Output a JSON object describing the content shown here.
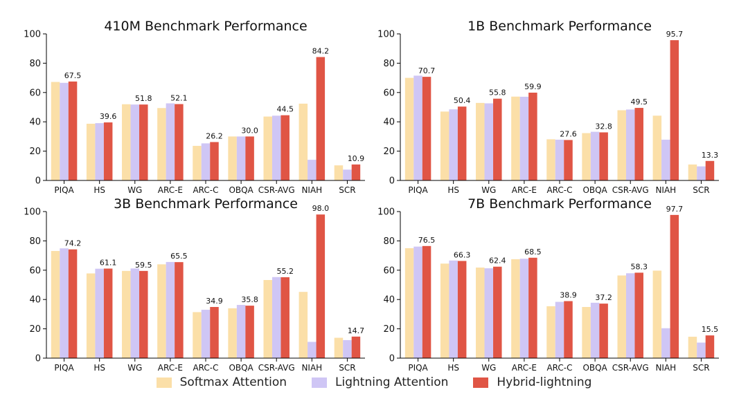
{
  "colors": {
    "softmax": "#FBDFA8",
    "lightning": "#CFC6F5",
    "hybrid": "#E05545",
    "axis": "#000000"
  },
  "legend": [
    {
      "label": "Softmax Attention",
      "color": "#FBDFA8"
    },
    {
      "label": "Lightning Attention",
      "color": "#CFC6F5"
    },
    {
      "label": "Hybrid-lightning",
      "color": "#E05545"
    }
  ],
  "chart_data": [
    {
      "type": "bar",
      "title": "410M Benchmark Performance",
      "categories": [
        "PIQA",
        "HS",
        "WG",
        "ARC-E",
        "ARC-C",
        "OBQA",
        "CSR-AVG",
        "NIAH",
        "SCR"
      ],
      "ylim": [
        0,
        100
      ],
      "yticks": [
        0,
        20,
        40,
        60,
        80,
        100
      ],
      "series": [
        {
          "name": "Softmax Attention",
          "values": [
            67.2,
            38.7,
            52.0,
            49.4,
            23.6,
            30.0,
            43.6,
            52.4,
            10.3
          ]
        },
        {
          "name": "Lightning Attention",
          "values": [
            66.6,
            39.1,
            51.8,
            52.6,
            25.3,
            30.0,
            44.2,
            14.1,
            7.4
          ]
        },
        {
          "name": "Hybrid-lightning",
          "values": [
            67.5,
            39.6,
            51.8,
            52.1,
            26.2,
            30.0,
            44.5,
            84.2,
            10.9
          ]
        }
      ],
      "labels": [
        "67.5",
        "39.6",
        "51.8",
        "52.1",
        "26.2",
        "30.0",
        "44.5",
        "84.2",
        "10.9"
      ]
    },
    {
      "type": "bar",
      "title": "1B Benchmark Performance",
      "categories": [
        "PIQA",
        "HS",
        "WG",
        "ARC-E",
        "ARC-C",
        "OBQA",
        "CSR-AVG",
        "NIAH",
        "SCR"
      ],
      "ylim": [
        0,
        100
      ],
      "yticks": [
        0,
        20,
        40,
        60,
        80,
        100
      ],
      "series": [
        {
          "name": "Softmax Attention",
          "values": [
            70.0,
            47.0,
            52.9,
            57.2,
            28.1,
            32.3,
            47.9,
            44.2,
            10.9
          ]
        },
        {
          "name": "Lightning Attention",
          "values": [
            71.5,
            48.5,
            52.6,
            57.1,
            27.8,
            33.2,
            48.4,
            27.8,
            9.6
          ]
        },
        {
          "name": "Hybrid-lightning",
          "values": [
            70.7,
            50.4,
            55.8,
            59.9,
            27.6,
            32.8,
            49.5,
            95.7,
            13.3
          ]
        }
      ],
      "labels": [
        "70.7",
        "50.4",
        "55.8",
        "59.9",
        "27.6",
        "32.8",
        "49.5",
        "95.7",
        "13.3"
      ]
    },
    {
      "type": "bar",
      "title": "3B Benchmark Performance",
      "categories": [
        "PIQA",
        "HS",
        "WG",
        "ARC-E",
        "ARC-C",
        "OBQA",
        "CSR-AVG",
        "NIAH",
        "SCR"
      ],
      "ylim": [
        0,
        100
      ],
      "yticks": [
        0,
        20,
        40,
        60,
        80,
        100
      ],
      "series": [
        {
          "name": "Softmax Attention",
          "values": [
            73.1,
            57.8,
            59.5,
            64.0,
            31.4,
            34.0,
            53.3,
            45.2,
            13.9
          ]
        },
        {
          "name": "Lightning Attention",
          "values": [
            74.9,
            61.0,
            61.2,
            65.6,
            33.0,
            36.3,
            55.3,
            11.1,
            12.3
          ]
        },
        {
          "name": "Hybrid-lightning",
          "values": [
            74.2,
            61.1,
            59.5,
            65.5,
            34.9,
            35.8,
            55.2,
            98.0,
            14.7
          ]
        }
      ],
      "labels": [
        "74.2",
        "61.1",
        "59.5",
        "65.5",
        "34.9",
        "35.8",
        "55.2",
        "98.0",
        "14.7"
      ]
    },
    {
      "type": "bar",
      "title": "7B Benchmark Performance",
      "categories": [
        "PIQA",
        "HS",
        "WG",
        "ARC-E",
        "ARC-C",
        "OBQA",
        "CSR-AVG",
        "NIAH",
        "SCR"
      ],
      "ylim": [
        0,
        100
      ],
      "yticks": [
        0,
        20,
        40,
        60,
        80,
        100
      ],
      "series": [
        {
          "name": "Softmax Attention",
          "values": [
            75.0,
            64.5,
            61.8,
            67.5,
            35.4,
            34.9,
            56.4,
            59.7,
            14.6
          ]
        },
        {
          "name": "Lightning Attention",
          "values": [
            76.1,
            66.6,
            61.3,
            67.8,
            38.4,
            37.8,
            57.9,
            20.4,
            10.6
          ]
        },
        {
          "name": "Hybrid-lightning",
          "values": [
            76.5,
            66.3,
            62.4,
            68.5,
            38.9,
            37.2,
            58.3,
            97.7,
            15.5
          ]
        }
      ],
      "labels": [
        "76.5",
        "66.3",
        "62.4",
        "68.5",
        "38.9",
        "37.2",
        "58.3",
        "97.7",
        "15.5"
      ]
    }
  ]
}
